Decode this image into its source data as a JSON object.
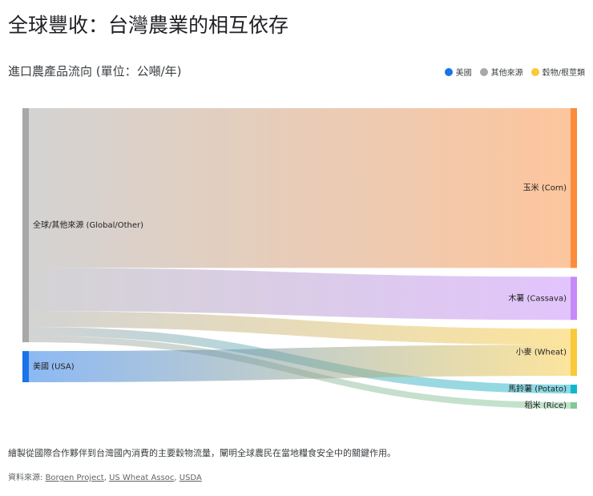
{
  "chart_data": {
    "type": "sankey",
    "title": "全球豐收：台灣農業的相互依存",
    "subtitle": "進口農產品流向 (單位：公噸/年)",
    "legend": [
      {
        "name": "美國",
        "color": "#1a73e8"
      },
      {
        "name": "其他來源",
        "color": "#a8a8a8"
      },
      {
        "name": "穀物/根莖類",
        "color": "#f9c93a"
      }
    ],
    "nodes": [
      {
        "name": "全球/其他來源 (Global/Other)",
        "color": "#a8a8a8",
        "side": "left"
      },
      {
        "name": "美國 (USA)",
        "color": "#1a73e8",
        "side": "left"
      },
      {
        "name": "玉米 (Corn)",
        "color": "#fb8c3c",
        "side": "right"
      },
      {
        "name": "木薯 (Cassava)",
        "color": "#c58af9",
        "side": "right"
      },
      {
        "name": "小麥 (Wheat)",
        "color": "#f9c93a",
        "side": "right"
      },
      {
        "name": "馬鈴薯 (Potato)",
        "color": "#12b5cb",
        "side": "right"
      },
      {
        "name": "稻米 (Rice)",
        "color": "#81c995",
        "side": "right"
      }
    ],
    "links": [
      {
        "source": 0,
        "target": 2,
        "value": 5000000
      },
      {
        "source": 0,
        "target": 3,
        "value": 1350000
      },
      {
        "source": 0,
        "target": 4,
        "value": 500000
      },
      {
        "source": 0,
        "target": 5,
        "value": 275000
      },
      {
        "source": 0,
        "target": 6,
        "value": 200000
      },
      {
        "source": 1,
        "target": 4,
        "value": 975000
      }
    ],
    "description": "繪製從國際合作夥伴到台灣國內消費的主要穀物流量，闡明全球農民在當地糧食安全中的關鍵作用。",
    "source_label": "資料來源: ",
    "source_separator": ", ",
    "sources": [
      "Borgen Project",
      "US Wheat Assoc",
      "USDA"
    ]
  }
}
